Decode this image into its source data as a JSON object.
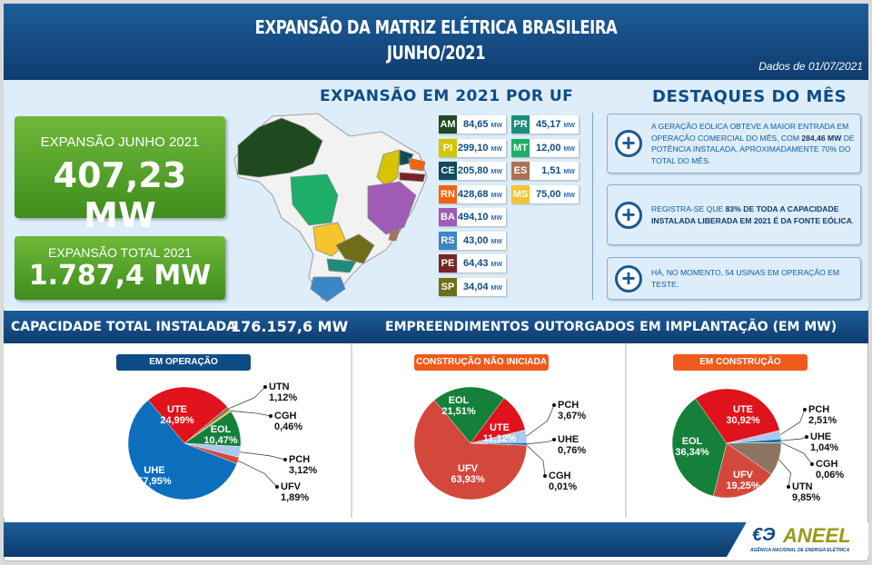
{
  "header": {
    "title_line1": "EXPANSÃO DA MATRIZ ELÉTRICA BRASILEIRA",
    "title_line2": "JUNHO/2021",
    "date": "Dados de 01/07/2021"
  },
  "expansion_month": {
    "label": "EXPANSÃO JUNHO 2021",
    "value": "407,23 MW"
  },
  "expansion_total": {
    "label": "EXPANSÃO TOTAL 2021",
    "value": "1.787,4 MW"
  },
  "by_state": {
    "title": "EXPANSÃO EM 2021 POR UF",
    "unit": "MW",
    "states": [
      {
        "code": "AM",
        "value": "84,65",
        "color": "#1f4a1f"
      },
      {
        "code": "PI",
        "value": "299,10",
        "color": "#d6c400"
      },
      {
        "code": "CE",
        "value": "205,80",
        "color": "#0f4a5e"
      },
      {
        "code": "RN",
        "value": "428,68",
        "color": "#f26411"
      },
      {
        "code": "BA",
        "value": "494,10",
        "color": "#a05bb4"
      },
      {
        "code": "RS",
        "value": "43,00",
        "color": "#3d86c6"
      },
      {
        "code": "PE",
        "value": "64,43",
        "color": "#7a2325"
      },
      {
        "code": "SP",
        "value": "34,04",
        "color": "#6e6e1a"
      },
      {
        "code": "PR",
        "value": "45,17",
        "color": "#1d8c7c"
      },
      {
        "code": "MT",
        "value": "12,00",
        "color": "#1fae6a"
      },
      {
        "code": "ES",
        "value": "1,51",
        "color": "#a97155"
      },
      {
        "code": "MS",
        "value": "75,00",
        "color": "#f6c42c"
      }
    ]
  },
  "highlights": {
    "title": "DESTAQUES DO MÊS",
    "items": [
      {
        "pre": "A GERAÇÃO EÓLICA OBTEVE A MAIOR ENTRADA EM OPERAÇÃO COMERCIAL DO MÊS, COM ",
        "bold": "284,46 MW",
        "post": " DE POTÊNCIA INSTALADA, APROXIMADAMENTE 70% DO TOTAL DO MÊS."
      },
      {
        "pre": "REGISTRA-SE QUE ",
        "bold": "83% DE TODA A CAPACIDADE INSTALADA LIBERADA EM 2021 É DA FONTE EÓLICA",
        "post": "."
      },
      {
        "pre": "HÁ, NO MOMENTO, 54 USINAS EM OPERAÇÃO EM TESTE.",
        "bold": "",
        "post": ""
      }
    ]
  },
  "band": {
    "capacity_label": "CAPACIDADE TOTAL INSTALADA",
    "capacity_value": "176.157,6 MW",
    "granted_title": "EMPREENDIMENTOS OUTORGADOS EM IMPLANTAÇÃO (EM MW)"
  },
  "colors": {
    "UHE": "#0b6fbe",
    "UTE": "#e0121b",
    "EOL": "#15803a",
    "UTN": "#8b7561",
    "CGH": "#e8c200",
    "PCH": "#a9c8ee",
    "UFV": "#d4483c"
  },
  "chart_data": [
    {
      "type": "pie",
      "title": "EM OPERAÇÃO",
      "title_color": "#0e4c86",
      "slices": [
        {
          "label": "UTE",
          "value": 24.99,
          "text": "24,99%"
        },
        {
          "label": "UTN",
          "value": 1.12,
          "text": "1,12%"
        },
        {
          "label": "CGH",
          "value": 0.46,
          "text": "0,46%"
        },
        {
          "label": "EOL",
          "value": 10.47,
          "text": "10,47%"
        },
        {
          "label": "PCH",
          "value": 3.12,
          "text": "3,12%"
        },
        {
          "label": "UFV",
          "value": 1.89,
          "text": "1,89%"
        },
        {
          "label": "UHE",
          "value": 57.95,
          "text": "57,95%"
        }
      ]
    },
    {
      "type": "pie",
      "title": "CONSTRUÇÃO NÃO INICIADA",
      "title_color": "#f05a1a",
      "slices": [
        {
          "label": "EOL",
          "value": 21.51,
          "text": "21,51%"
        },
        {
          "label": "UTE",
          "value": 11.12,
          "text": "11,12%"
        },
        {
          "label": "PCH",
          "value": 3.67,
          "text": "3,67%"
        },
        {
          "label": "UHE",
          "value": 0.76,
          "text": "0,76%"
        },
        {
          "label": "CGH",
          "value": 0.01,
          "text": "0,01%"
        },
        {
          "label": "UFV",
          "value": 63.93,
          "text": "63,93%"
        }
      ]
    },
    {
      "type": "pie",
      "title": "EM CONSTRUÇÃO",
      "title_color": "#f05a1a",
      "slices": [
        {
          "label": "UTE",
          "value": 30.92,
          "text": "30,92%"
        },
        {
          "label": "PCH",
          "value": 2.51,
          "text": "2,51%"
        },
        {
          "label": "UHE",
          "value": 1.04,
          "text": "1,04%"
        },
        {
          "label": "CGH",
          "value": 0.06,
          "text": "0,06%"
        },
        {
          "label": "UTN",
          "value": 9.85,
          "text": "9,85%"
        },
        {
          "label": "UFV",
          "value": 19.25,
          "text": "19,25%"
        },
        {
          "label": "EOL",
          "value": 36.34,
          "text": "36,34%"
        }
      ]
    }
  ],
  "footer": {
    "logo_text": "ANEEL",
    "logo_subtitle": "AGÊNCIA NACIONAL DE ENERGIA ELÉTRICA"
  }
}
